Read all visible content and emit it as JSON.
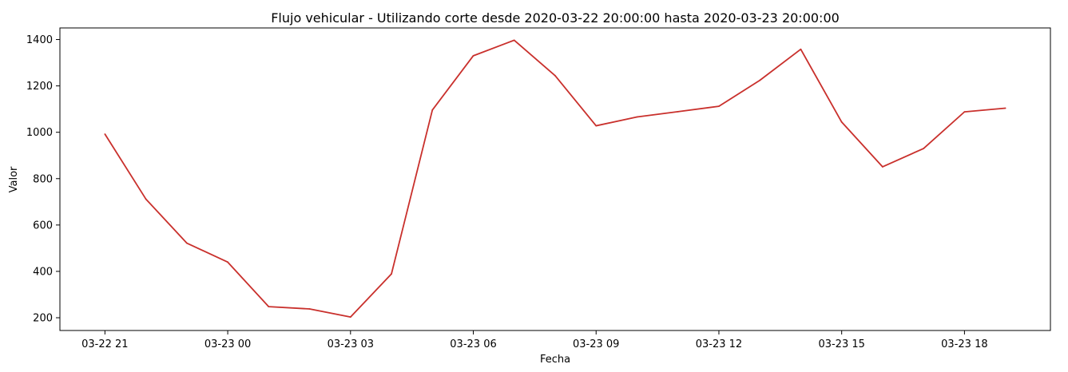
{
  "chart_data": {
    "type": "line",
    "title": "Flujo vehicular - Utilizando corte desde 2020-03-22 20:00:00 hasta 2020-03-23 20:00:00",
    "xlabel": "Fecha",
    "ylabel": "Valor",
    "x": [
      "2020-03-22 21:00",
      "2020-03-22 22:00",
      "2020-03-22 23:00",
      "2020-03-23 00:00",
      "2020-03-23 01:00",
      "2020-03-23 02:00",
      "2020-03-23 03:00",
      "2020-03-23 04:00",
      "2020-03-23 05:00",
      "2020-03-23 06:00",
      "2020-03-23 07:00",
      "2020-03-23 08:00",
      "2020-03-23 09:00",
      "2020-03-23 10:00",
      "2020-03-23 11:00",
      "2020-03-23 12:00",
      "2020-03-23 13:00",
      "2020-03-23 14:00",
      "2020-03-23 15:00",
      "2020-03-23 16:00",
      "2020-03-23 17:00",
      "2020-03-23 18:00",
      "2020-03-23 19:00"
    ],
    "series": [
      {
        "values": [
          992,
          712,
          522,
          440,
          248,
          238,
          203,
          389,
          1096,
          1330,
          1397,
          1244,
          1028,
          1066,
          1089,
          1112,
          1224,
          1358,
          1044,
          851,
          930,
          1088,
          1104
        ],
        "color": "#c9302c"
      }
    ],
    "x_ticks": [
      "03-22 21",
      "03-23 00",
      "03-23 03",
      "03-23 06",
      "03-23 09",
      "03-23 12",
      "03-23 15",
      "03-23 18"
    ],
    "y_ticks": [
      "200",
      "400",
      "600",
      "800",
      "1000",
      "1200",
      "1400"
    ],
    "ylim": [
      145,
      1450
    ],
    "xlim": [
      "2020-03-22 19:54",
      "2020-03-23 20:06"
    ],
    "grid": false,
    "legend": "none"
  }
}
